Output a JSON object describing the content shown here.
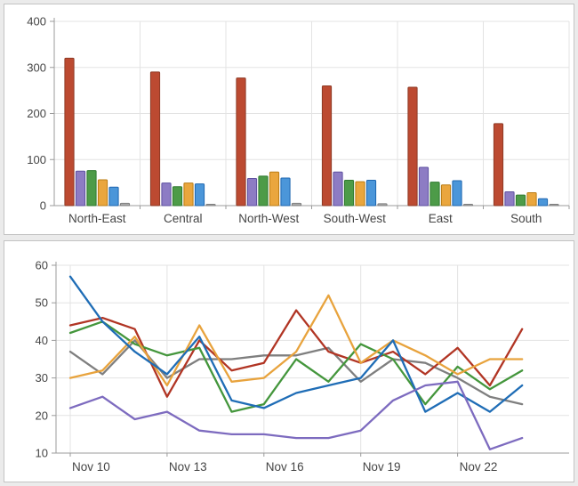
{
  "page_background": "#ebebeb",
  "panel_border": "#c3c3c3",
  "grid_color": "#e3e3e3",
  "axis_color": "#9b9b9b",
  "label_color": "#454545",
  "chart_data": [
    {
      "type": "bar",
      "title": "",
      "xlabel": "",
      "ylabel": "",
      "ylim": [
        0,
        400
      ],
      "yticks": [
        0,
        100,
        200,
        300,
        400
      ],
      "grid": true,
      "legend": "none",
      "categories": [
        "North-East",
        "Central",
        "North-West",
        "South-West",
        "East",
        "South"
      ],
      "series": [
        {
          "name": "red",
          "fill": "#bc4a31",
          "stroke": "#8e3a25",
          "values": [
            320,
            290,
            277,
            260,
            257,
            178
          ]
        },
        {
          "name": "purple",
          "fill": "#8d7cc4",
          "stroke": "#5e50a0",
          "values": [
            75,
            49,
            59,
            73,
            83,
            30
          ]
        },
        {
          "name": "green",
          "fill": "#4d9b48",
          "stroke": "#2f7a2f",
          "values": [
            76,
            41,
            64,
            55,
            51,
            23
          ]
        },
        {
          "name": "orange",
          "fill": "#eaa63d",
          "stroke": "#bb7d15",
          "values": [
            56,
            49,
            73,
            52,
            45,
            28
          ]
        },
        {
          "name": "blue",
          "fill": "#4b96d9",
          "stroke": "#1f67b1",
          "values": [
            40,
            47,
            60,
            55,
            54,
            15
          ]
        },
        {
          "name": "gray",
          "fill": "#aaaaaa",
          "stroke": "#7f7f7f",
          "values": [
            5,
            3,
            5,
            4,
            2,
            2
          ]
        }
      ]
    },
    {
      "type": "line",
      "title": "",
      "xlabel": "",
      "ylabel": "",
      "ylim": [
        10,
        60
      ],
      "yticks": [
        10,
        20,
        30,
        40,
        50,
        60
      ],
      "grid": true,
      "legend": "none",
      "n_points": 15,
      "x_tick_positions": [
        0,
        3,
        6,
        9,
        12
      ],
      "x_tick_labels": [
        "Nov 10",
        "Nov 13",
        "Nov 16",
        "Nov 19",
        "Nov 22"
      ],
      "series": [
        {
          "name": "gray",
          "color": "#7f7f7f",
          "values": [
            37,
            31,
            40,
            30,
            35,
            35,
            36,
            36,
            38,
            29,
            35,
            34,
            30,
            25,
            23
          ]
        },
        {
          "name": "red",
          "color": "#b13524",
          "values": [
            44,
            46,
            43,
            25,
            40,
            32,
            34,
            48,
            37,
            34,
            37,
            31,
            38,
            28,
            43
          ]
        },
        {
          "name": "green",
          "color": "#44963c",
          "values": [
            42,
            45,
            39,
            36,
            38,
            21,
            23,
            35,
            29,
            39,
            35,
            23,
            33,
            27,
            32
          ]
        },
        {
          "name": "orange",
          "color": "#e8a33d",
          "values": [
            30,
            32,
            41,
            28,
            44,
            29,
            30,
            37,
            52,
            34,
            40,
            36,
            31,
            35,
            35
          ]
        },
        {
          "name": "blue",
          "color": "#1f6db6",
          "values": [
            57,
            45,
            37,
            31,
            41,
            24,
            22,
            26,
            28,
            30,
            40,
            21,
            26,
            21,
            28
          ]
        },
        {
          "name": "purple",
          "color": "#7d6bbf",
          "values": [
            22,
            25,
            19,
            21,
            16,
            15,
            15,
            14,
            14,
            16,
            24,
            28,
            29,
            11,
            14
          ]
        }
      ]
    }
  ]
}
